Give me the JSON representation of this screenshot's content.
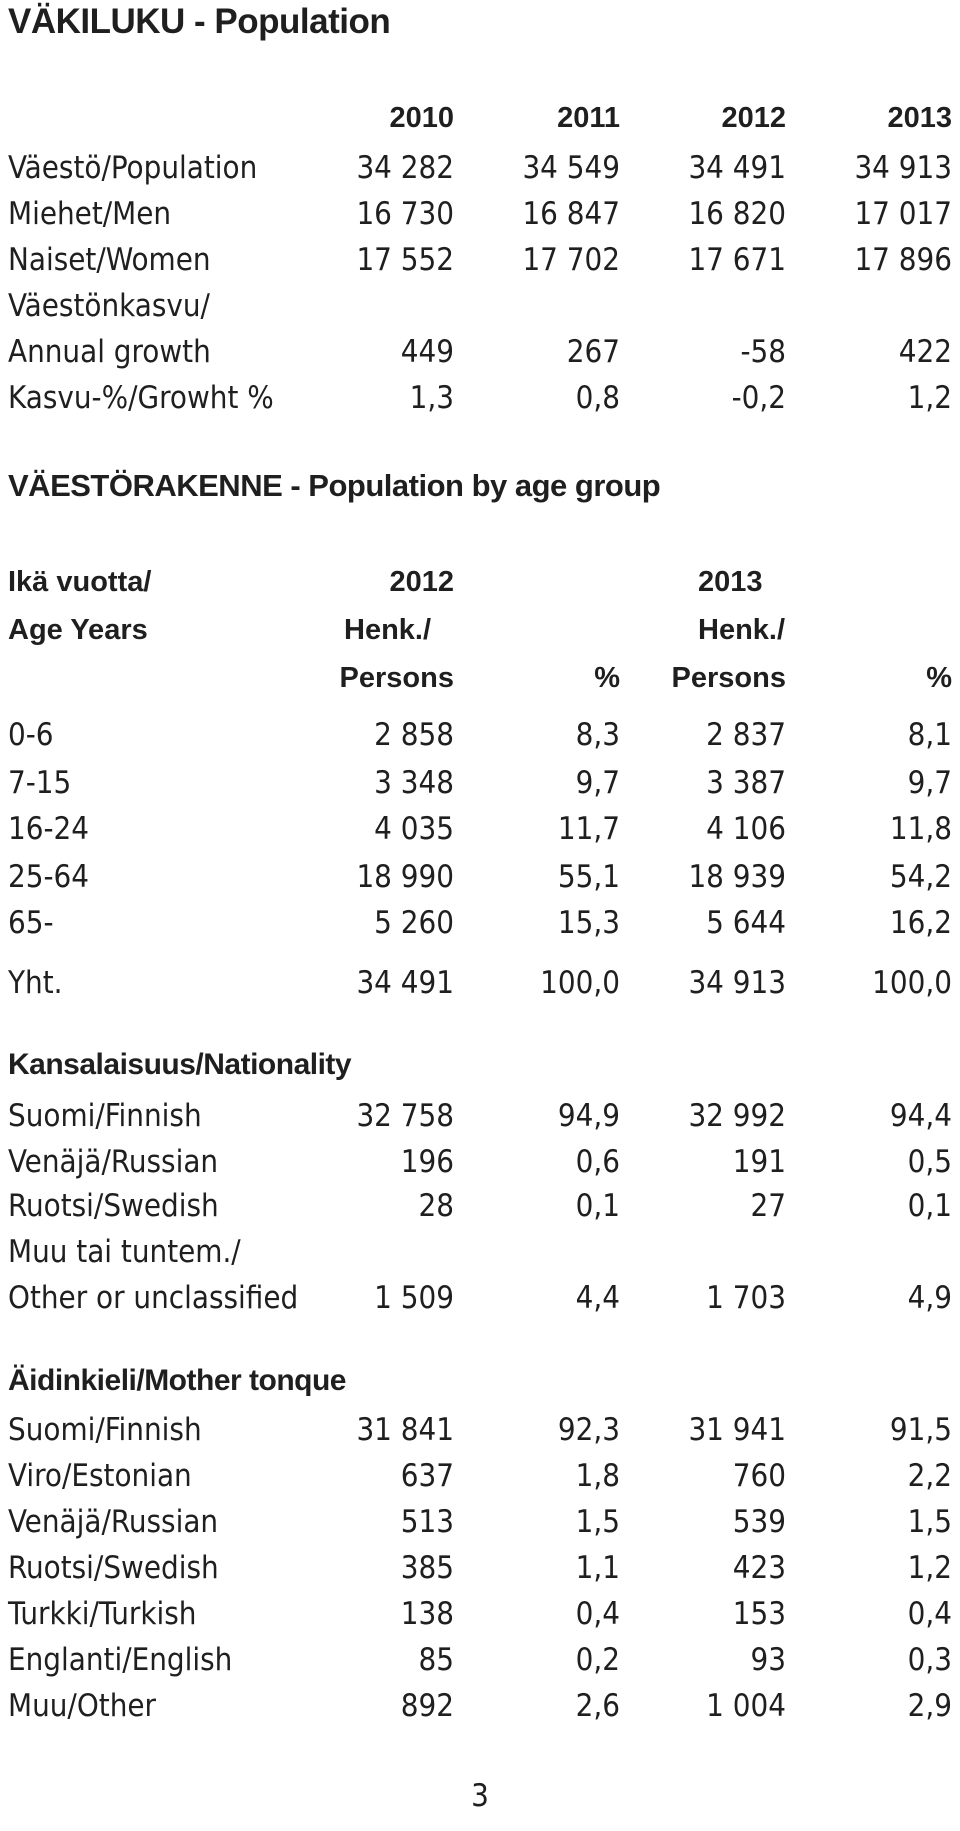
{
  "population": {
    "title": "VÄKILUKU - Population",
    "years": [
      "2010",
      "2011",
      "2012",
      "2013"
    ],
    "rows": [
      {
        "label": "Väestö/Population",
        "values": [
          "34 282",
          "34 549",
          "34 491",
          "34 913"
        ]
      },
      {
        "label": "Miehet/Men",
        "values": [
          "16 730",
          "16 847",
          "16 820",
          "17 017"
        ]
      },
      {
        "label": "Naiset/Women",
        "values": [
          "17 552",
          "17 702",
          "17 671",
          "17 896"
        ]
      },
      {
        "label": "Väestönkasvu/",
        "values": [
          "",
          "",
          "",
          ""
        ]
      },
      {
        "label": "Annual growth",
        "values": [
          "449",
          "267",
          "-58",
          "422"
        ]
      },
      {
        "label": "Kasvu-%/Growht %",
        "values": [
          "1,3",
          "0,8",
          "-0,2",
          "1,2"
        ]
      }
    ]
  },
  "age": {
    "title": "VÄESTÖRAKENNE - Population by age group",
    "header": {
      "label_line1": "Ikä vuotta/",
      "label_line2": "Age Years",
      "year1": "2012",
      "year2": "2013",
      "henk": "Henk./",
      "persons": "Persons",
      "percent": "%"
    },
    "rows": [
      {
        "label": "0-6",
        "values": [
          "2 858",
          "8,3",
          "2 837",
          "8,1"
        ]
      },
      {
        "label": "7-15",
        "values": [
          "3 348",
          "9,7",
          "3 387",
          "9,7"
        ]
      },
      {
        "label": "16-24",
        "values": [
          "4 035",
          "11,7",
          "4 106",
          "11,8"
        ]
      },
      {
        "label": "25-64",
        "values": [
          "18 990",
          "55,1",
          "18 939",
          "54,2"
        ]
      },
      {
        "label": "65-",
        "values": [
          "5 260",
          "15,3",
          "5 644",
          "16,2"
        ]
      },
      {
        "label": "Yht.",
        "values": [
          "34 491",
          "100,0",
          "34 913",
          "100,0"
        ]
      }
    ]
  },
  "nationality": {
    "title": "Kansalaisuus/Nationality",
    "rows": [
      {
        "label": "Suomi/Finnish",
        "values": [
          "32 758",
          "94,9",
          "32 992",
          "94,4"
        ]
      },
      {
        "label": "Venäjä/Russian",
        "values": [
          "196",
          "0,6",
          "191",
          "0,5"
        ]
      },
      {
        "label": "Ruotsi/Swedish",
        "values": [
          "28",
          "0,1",
          "27",
          "0,1"
        ]
      },
      {
        "label": "Muu tai tuntem./",
        "values": [
          "",
          "",
          "",
          ""
        ]
      },
      {
        "label": "Other or unclassified",
        "values": [
          "1 509",
          "4,4",
          "1 703",
          "4,9"
        ]
      }
    ]
  },
  "language": {
    "title": "Äidinkieli/Mother tonque",
    "rows": [
      {
        "label": "Suomi/Finnish",
        "values": [
          "31 841",
          "92,3",
          "31 941",
          "91,5"
        ]
      },
      {
        "label": "Viro/Estonian",
        "values": [
          "637",
          "1,8",
          "760",
          "2,2"
        ]
      },
      {
        "label": "Venäjä/Russian",
        "values": [
          "513",
          "1,5",
          "539",
          "1,5"
        ]
      },
      {
        "label": "Ruotsi/Swedish",
        "values": [
          "385",
          "1,1",
          "423",
          "1,2"
        ]
      },
      {
        "label": "Turkki/Turkish",
        "values": [
          "138",
          "0,4",
          "153",
          "0,4"
        ]
      },
      {
        "label": "Englanti/English",
        "values": [
          "85",
          "0,2",
          "93",
          "0,3"
        ]
      },
      {
        "label": "Muu/Other",
        "values": [
          "892",
          "2,6",
          "1 004",
          "2,9"
        ]
      }
    ]
  },
  "page_number": "3"
}
